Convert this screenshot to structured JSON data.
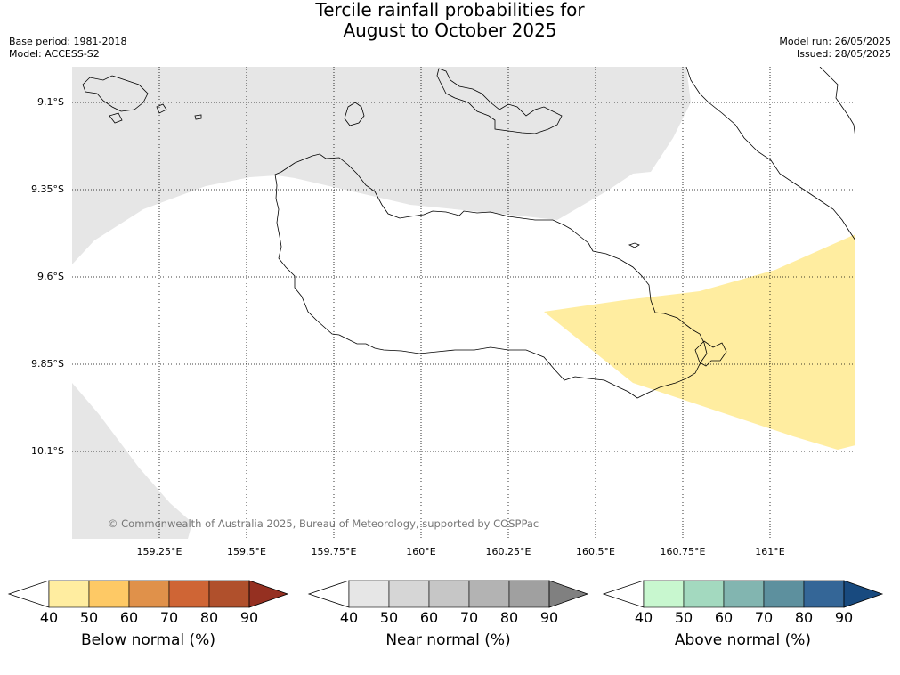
{
  "title": {
    "line1": "Tercile rainfall probabilities for",
    "line2": "August to October 2025"
  },
  "meta": {
    "base_period": "Base period: 1981-2018",
    "model": "Model: ACCESS-S2",
    "model_run": "Model run: 26/05/2025",
    "issued": "Issued: 28/05/2025"
  },
  "map": {
    "lat_labels": [
      "9.1°S",
      "9.35°S",
      "9.6°S",
      "9.85°S",
      "10.1°S"
    ],
    "lon_labels": [
      "159.25°E",
      "159.5°E",
      "159.75°E",
      "160°E",
      "160.25°E",
      "160.5°E",
      "160.75°E",
      "161°E"
    ],
    "copyright": "© Commonwealth of Australia 2025, Bureau of Meteorology, supported by COSPPac",
    "colors": {
      "near_normal_shade": "#e6e6e6",
      "below_normal_shade": "#ffeda0",
      "coastline": "#000000",
      "grid": "#000000"
    }
  },
  "legends": [
    {
      "label": "Below normal (%)",
      "ticks": [
        "40",
        "50",
        "60",
        "70",
        "80",
        "90"
      ],
      "colors": [
        "#ffeda0",
        "#fec965",
        "#e0914a",
        "#cf6535",
        "#b0502c",
        "#953021"
      ]
    },
    {
      "label": "Near normal (%)",
      "ticks": [
        "40",
        "50",
        "60",
        "70",
        "80",
        "90"
      ],
      "colors": [
        "#e6e6e6",
        "#d6d6d6",
        "#c6c6c6",
        "#b3b3b3",
        "#a0a0a0",
        "#808080"
      ]
    },
    {
      "label": "Above normal (%)",
      "ticks": [
        "40",
        "50",
        "60",
        "70",
        "80",
        "90"
      ],
      "colors": [
        "#c8f7cf",
        "#a3d9bf",
        "#82b5b0",
        "#5d909e",
        "#346697",
        "#184a7f"
      ]
    }
  ]
}
